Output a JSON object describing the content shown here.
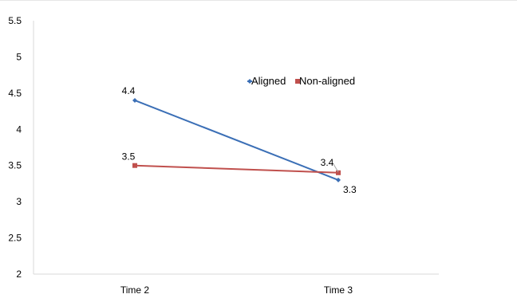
{
  "chart_data": {
    "type": "line",
    "title": "",
    "xlabel": "",
    "ylabel": "",
    "categories": [
      "Time 2",
      "Time 3"
    ],
    "ylim": [
      2,
      5.5
    ],
    "yticks": [
      "2",
      "2.5",
      "3",
      "3.5",
      "4",
      "4.5",
      "5",
      "5.5"
    ],
    "grid": false,
    "legend_position": "top-right",
    "series": [
      {
        "name": "Aligned",
        "values": [
          4.4,
          3.3
        ],
        "labels": [
          "4.4",
          "3.3"
        ],
        "color": "#3b6fb6"
      },
      {
        "name": "Non-aligned",
        "values": [
          3.5,
          3.4
        ],
        "labels": [
          "3.5",
          "3.4"
        ],
        "color": "#c0504d"
      }
    ]
  }
}
